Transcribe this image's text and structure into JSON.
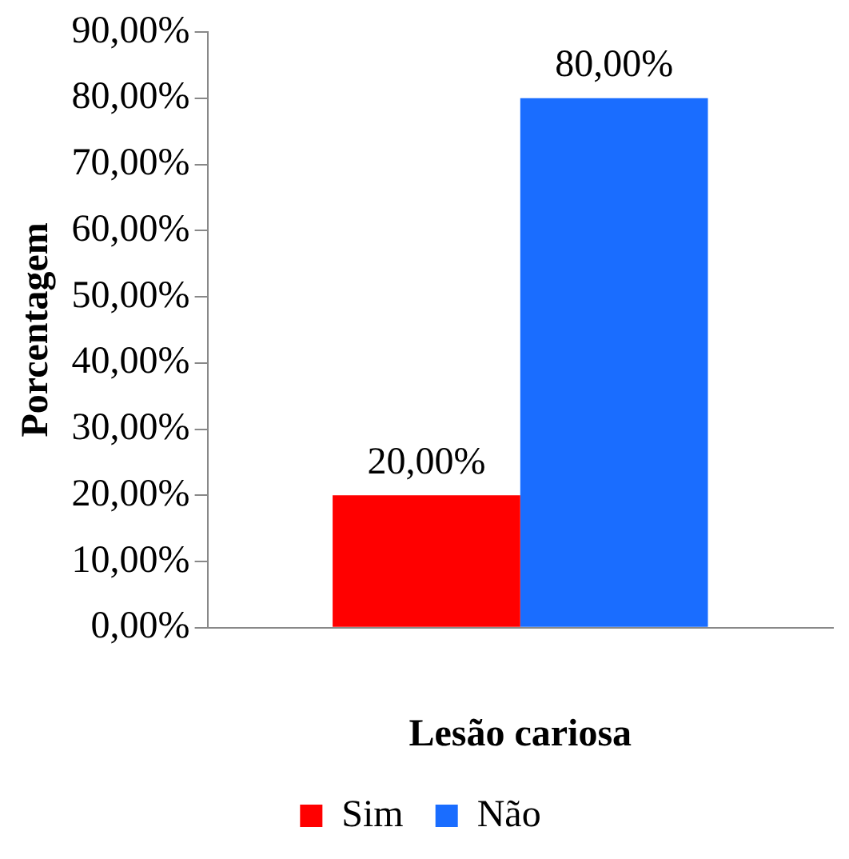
{
  "chart_data": {
    "type": "bar",
    "xlabel": "Lesão cariosa",
    "ylabel": "Porcentagem",
    "categories": [
      null
    ],
    "series": [
      {
        "name": "Sim",
        "color": "#ff0000",
        "values": [
          20
        ],
        "value_labels": [
          "20,00%"
        ]
      },
      {
        "name": "Não",
        "color": "#1a6dff",
        "values": [
          80
        ],
        "value_labels": [
          "80,00%"
        ]
      }
    ],
    "ylim": [
      0,
      90
    ],
    "yticks": [
      {
        "value": 0,
        "label": "0,00%"
      },
      {
        "value": 10,
        "label": "10,00%"
      },
      {
        "value": 20,
        "label": "20,00%"
      },
      {
        "value": 30,
        "label": "30,00%"
      },
      {
        "value": 40,
        "label": "40,00%"
      },
      {
        "value": 50,
        "label": "50,00%"
      },
      {
        "value": 60,
        "label": "60,00%"
      },
      {
        "value": 70,
        "label": "70,00%"
      },
      {
        "value": 80,
        "label": "80,00%"
      },
      {
        "value": 90,
        "label": "90,00%"
      }
    ],
    "grid": false,
    "legend": "bottom"
  }
}
